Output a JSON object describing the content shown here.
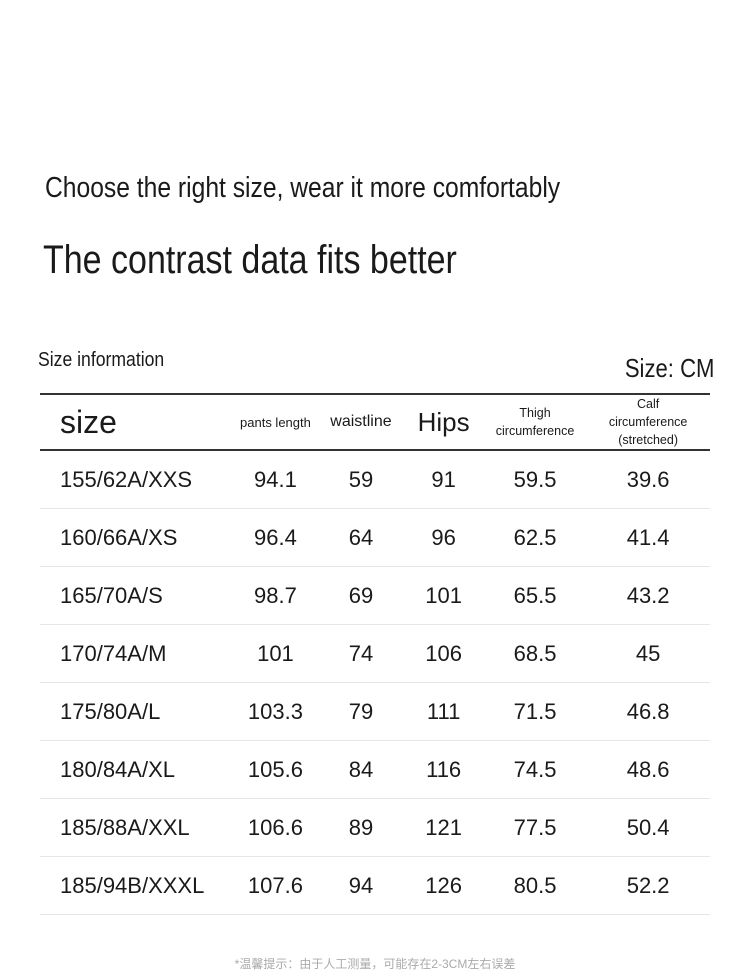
{
  "header": {
    "subtitle": "Choose the right size, wear it more comfortably",
    "title": "The contrast data fits better",
    "section": "Size information",
    "unit": "Size: CM"
  },
  "table": {
    "columns": [
      "size",
      "pants length",
      "waistline",
      "Hips",
      "Thigh circumference",
      "Calf circumference (stretched)"
    ],
    "rows": [
      [
        "155/62A/XXS",
        94.1,
        59,
        91,
        59.5,
        39.6
      ],
      [
        "160/66A/XS",
        96.4,
        64,
        96,
        62.5,
        41.4
      ],
      [
        "165/70A/S",
        98.7,
        69,
        101,
        65.5,
        43.2
      ],
      [
        "170/74A/M",
        101,
        74,
        106,
        68.5,
        45
      ],
      [
        "175/80A/L",
        103.3,
        79,
        111,
        71.5,
        46.8
      ],
      [
        "180/84A/XL",
        105.6,
        84,
        116,
        74.5,
        48.6
      ],
      [
        "185/88A/XXL",
        106.6,
        89,
        121,
        77.5,
        50.4
      ],
      [
        "185/94B/XXXL",
        107.6,
        94,
        126,
        80.5,
        52.2
      ]
    ]
  },
  "footer": {
    "note": "*温馨提示：由于人工测量，可能存在2-3CM左右误差"
  }
}
